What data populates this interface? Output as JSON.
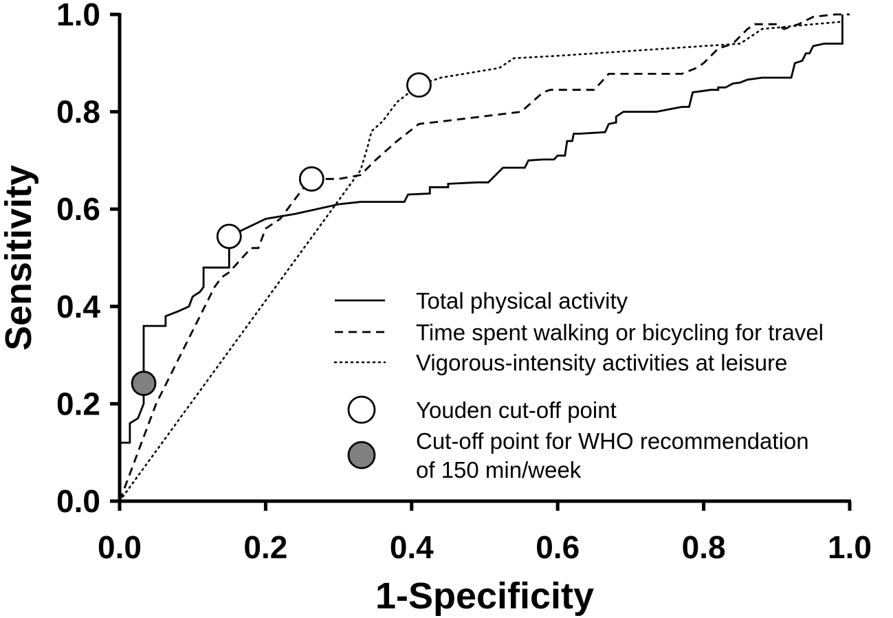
{
  "chart_data": {
    "type": "line",
    "title": "",
    "xlabel": "1-Specificity",
    "ylabel": "Sensitivity",
    "xlim": [
      0,
      1
    ],
    "ylim": [
      0,
      1
    ],
    "x_ticks": [
      "0.0",
      "0.2",
      "0.4",
      "0.6",
      "0.8",
      "1.0"
    ],
    "y_ticks": [
      "0.0",
      "0.2",
      "0.4",
      "0.6",
      "0.8",
      "1.0"
    ],
    "grid": false,
    "legend_position": "bottom-right",
    "series": [
      {
        "name": "Total physical activity",
        "style": "solid",
        "points": [
          [
            0.0,
            0.0
          ],
          [
            0.0,
            0.12
          ],
          [
            0.014,
            0.12
          ],
          [
            0.014,
            0.16
          ],
          [
            0.025,
            0.17
          ],
          [
            0.033,
            0.2
          ],
          [
            0.033,
            0.36
          ],
          [
            0.063,
            0.36
          ],
          [
            0.063,
            0.38
          ],
          [
            0.08,
            0.39
          ],
          [
            0.095,
            0.4
          ],
          [
            0.1,
            0.42
          ],
          [
            0.11,
            0.43
          ],
          [
            0.115,
            0.44
          ],
          [
            0.115,
            0.48
          ],
          [
            0.15,
            0.48
          ],
          [
            0.15,
            0.544
          ],
          [
            0.2,
            0.58
          ],
          [
            0.24,
            0.59
          ],
          [
            0.27,
            0.6
          ],
          [
            0.3,
            0.61
          ],
          [
            0.33,
            0.615
          ],
          [
            0.39,
            0.615
          ],
          [
            0.395,
            0.63
          ],
          [
            0.425,
            0.632
          ],
          [
            0.425,
            0.645
          ],
          [
            0.45,
            0.645
          ],
          [
            0.45,
            0.652
          ],
          [
            0.49,
            0.655
          ],
          [
            0.505,
            0.655
          ],
          [
            0.525,
            0.685
          ],
          [
            0.555,
            0.685
          ],
          [
            0.56,
            0.7
          ],
          [
            0.58,
            0.702
          ],
          [
            0.595,
            0.702
          ],
          [
            0.6,
            0.71
          ],
          [
            0.61,
            0.71
          ],
          [
            0.613,
            0.74
          ],
          [
            0.62,
            0.74
          ],
          [
            0.622,
            0.755
          ],
          [
            0.63,
            0.755
          ],
          [
            0.665,
            0.758
          ],
          [
            0.67,
            0.775
          ],
          [
            0.68,
            0.778
          ],
          [
            0.68,
            0.79
          ],
          [
            0.69,
            0.8
          ],
          [
            0.735,
            0.8
          ],
          [
            0.77,
            0.81
          ],
          [
            0.78,
            0.81
          ],
          [
            0.785,
            0.84
          ],
          [
            0.81,
            0.845
          ],
          [
            0.82,
            0.845
          ],
          [
            0.82,
            0.85
          ],
          [
            0.83,
            0.85
          ],
          [
            0.84,
            0.858
          ],
          [
            0.85,
            0.86
          ],
          [
            0.86,
            0.866
          ],
          [
            0.87,
            0.868
          ],
          [
            0.88,
            0.87
          ],
          [
            0.92,
            0.87
          ],
          [
            0.925,
            0.9
          ],
          [
            0.935,
            0.905
          ],
          [
            0.94,
            0.92
          ],
          [
            0.945,
            0.92
          ],
          [
            0.95,
            0.935
          ],
          [
            0.965,
            0.94
          ],
          [
            0.99,
            0.94
          ],
          [
            0.99,
            1.0
          ]
        ]
      },
      {
        "name": "Time spent walking or bicycling for travel",
        "style": "dashed",
        "points": [
          [
            0.0,
            0.0
          ],
          [
            0.05,
            0.2
          ],
          [
            0.13,
            0.44
          ],
          [
            0.14,
            0.46
          ],
          [
            0.15,
            0.47
          ],
          [
            0.18,
            0.52
          ],
          [
            0.19,
            0.52
          ],
          [
            0.195,
            0.54
          ],
          [
            0.2,
            0.56
          ],
          [
            0.22,
            0.58
          ],
          [
            0.24,
            0.62
          ],
          [
            0.25,
            0.64
          ],
          [
            0.263,
            0.662
          ],
          [
            0.3,
            0.662
          ],
          [
            0.33,
            0.67
          ],
          [
            0.35,
            0.7
          ],
          [
            0.38,
            0.74
          ],
          [
            0.41,
            0.775
          ],
          [
            0.44,
            0.78
          ],
          [
            0.55,
            0.8
          ],
          [
            0.58,
            0.84
          ],
          [
            0.59,
            0.845
          ],
          [
            0.65,
            0.845
          ],
          [
            0.67,
            0.878
          ],
          [
            0.77,
            0.878
          ],
          [
            0.79,
            0.89
          ],
          [
            0.8,
            0.9
          ],
          [
            0.82,
            0.93
          ],
          [
            0.84,
            0.94
          ],
          [
            0.86,
            0.97
          ],
          [
            0.87,
            0.98
          ],
          [
            0.9,
            0.98
          ],
          [
            0.91,
            0.97
          ],
          [
            0.93,
            0.98
          ],
          [
            0.95,
            0.995
          ],
          [
            0.98,
            1.0
          ],
          [
            1.0,
            1.0
          ]
        ]
      },
      {
        "name": "Vigorous-intensity activities at leisure",
        "style": "dotted",
        "points": [
          [
            0.0,
            0.0
          ],
          [
            0.33,
            0.68
          ],
          [
            0.34,
            0.73
          ],
          [
            0.345,
            0.76
          ],
          [
            0.36,
            0.78
          ],
          [
            0.38,
            0.82
          ],
          [
            0.41,
            0.855
          ],
          [
            0.44,
            0.87
          ],
          [
            0.52,
            0.89
          ],
          [
            0.54,
            0.91
          ],
          [
            0.6,
            0.915
          ],
          [
            0.7,
            0.925
          ],
          [
            0.8,
            0.935
          ],
          [
            0.85,
            0.94
          ],
          [
            0.88,
            0.97
          ],
          [
            0.95,
            0.98
          ],
          [
            0.99,
            0.985
          ]
        ]
      }
    ],
    "markers": [
      {
        "name": "Youden cut-off point",
        "type": "open-circle",
        "points": [
          [
            0.15,
            0.544
          ],
          [
            0.263,
            0.662
          ],
          [
            0.41,
            0.855
          ]
        ]
      },
      {
        "name": "Cut-off point for WHO recommendation of 150 min/week",
        "type": "filled-circle",
        "points": [
          [
            0.033,
            0.242
          ]
        ]
      }
    ],
    "legend": {
      "series_entries": [
        "Total physical activity",
        "Time spent walking or bicycling for travel",
        "Vigorous-intensity activities at leisure"
      ],
      "marker_entries": [
        {
          "line1": "Youden cut-off point",
          "line2": ""
        },
        {
          "line1": "Cut-off point for WHO recommendation",
          "line2": "of 150 min/week"
        }
      ]
    },
    "colors": {
      "axis": "#000000",
      "line": "#000000",
      "filled_marker": "#808080",
      "open_marker": "#ffffff"
    }
  }
}
